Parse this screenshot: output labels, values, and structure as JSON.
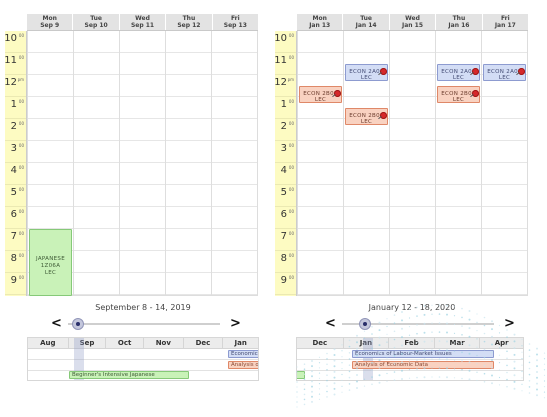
{
  "calendar_left": {
    "days": [
      {
        "dow": "Mon",
        "date": "Sep 9"
      },
      {
        "dow": "Tue",
        "date": "Sep 10"
      },
      {
        "dow": "Wed",
        "date": "Sep 11"
      },
      {
        "dow": "Thu",
        "date": "Sep 12"
      },
      {
        "dow": "Fri",
        "date": "Sep 13"
      }
    ],
    "range_label": "September 8 - 14, 2019",
    "event_green": {
      "line1": "JAPANESE",
      "line2": "1Z06A",
      "line3": "LEC"
    }
  },
  "calendar_right": {
    "days": [
      {
        "dow": "Mon",
        "date": "Jan 13"
      },
      {
        "dow": "Tue",
        "date": "Jan 14"
      },
      {
        "dow": "Wed",
        "date": "Jan 15"
      },
      {
        "dow": "Thu",
        "date": "Jan 16"
      },
      {
        "dow": "Fri",
        "date": "Jan 17"
      }
    ],
    "range_label": "January 12 - 18, 2020",
    "econ_2a03": {
      "line1": "ECON 2A03",
      "line2": "LEC"
    },
    "econ_2b03": {
      "line1": "ECON 2B03",
      "line2": "LEC"
    }
  },
  "hours": [
    {
      "h": "10",
      "m": "00"
    },
    {
      "h": "11",
      "m": "00"
    },
    {
      "h": "12",
      "m": "pm"
    },
    {
      "h": "1",
      "m": "00"
    },
    {
      "h": "2",
      "m": "00"
    },
    {
      "h": "3",
      "m": "00"
    },
    {
      "h": "4",
      "m": "00"
    },
    {
      "h": "5",
      "m": "00"
    },
    {
      "h": "6",
      "m": "00"
    },
    {
      "h": "7",
      "m": "00"
    },
    {
      "h": "8",
      "m": "00"
    },
    {
      "h": "9",
      "m": "00"
    }
  ],
  "slider": {
    "prev_arrow": "<",
    "next_arrow": ">"
  },
  "timeline_left": {
    "months": [
      "Aug",
      "Sep",
      "Oct",
      "Nov",
      "Dec",
      "Jan"
    ],
    "bar_blue": "Economics",
    "bar_orange": "Analysis o",
    "bar_green": "Beginner's Intensive Japanese"
  },
  "timeline_right": {
    "months": [
      "Dec",
      "Jan",
      "Feb",
      "Mar",
      "Apr"
    ],
    "bar_blue": "Economics of Labour-Market Issues",
    "bar_orange": "Analysis of Economic Data"
  },
  "colors": {
    "event_blue": "#d3ddf5",
    "event_orange": "#f9d2c1",
    "event_green": "#c9f2b8",
    "time_gutter": "#fdfbc2",
    "pin": "#d6282a"
  },
  "icons": [
    "pushpin-icon",
    "chevron-left-icon",
    "chevron-right-icon",
    "slider-thumb-icon"
  ]
}
